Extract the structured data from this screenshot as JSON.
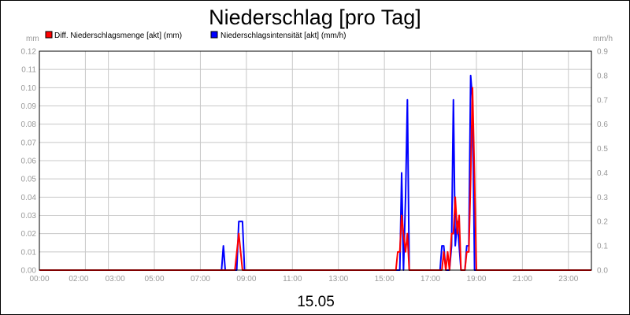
{
  "chart_data": {
    "type": "line",
    "title": "Niederschlag [pro Tag]",
    "date_label": "15.05",
    "left_axis": {
      "unit": "mm",
      "min": 0,
      "max": 0.12,
      "ticks": [
        "0.00",
        "0.01",
        "0.02",
        "0.03",
        "0.04",
        "0.05",
        "0.06",
        "0.07",
        "0.08",
        "0.09",
        "0.10",
        "0.11",
        "0.12"
      ]
    },
    "right_axis": {
      "unit": "mm/h",
      "min": 0,
      "max": 0.9,
      "ticks": [
        "0.0",
        "0.1",
        "0.2",
        "0.3",
        "0.4",
        "0.5",
        "0.6",
        "0.7",
        "0.8",
        "0.9"
      ]
    },
    "x_axis": {
      "min": 0,
      "max": 24,
      "tick_labels": [
        {
          "hour": 0,
          "label": "00:00"
        },
        {
          "hour": 2,
          "label": "02:00"
        },
        {
          "hour": 3,
          "label": "03:00"
        },
        {
          "hour": 5,
          "label": "05:00"
        },
        {
          "hour": 7,
          "label": "07:00"
        },
        {
          "hour": 9,
          "label": "09:00"
        },
        {
          "hour": 11,
          "label": "11:00"
        },
        {
          "hour": 13,
          "label": "13:00"
        },
        {
          "hour": 15,
          "label": "15:00"
        },
        {
          "hour": 17,
          "label": "17:00"
        },
        {
          "hour": 19,
          "label": "19:00"
        },
        {
          "hour": 21,
          "label": "21:00"
        },
        {
          "hour": 23,
          "label": "23:00"
        }
      ]
    },
    "grid": true,
    "legend_position": "top-left",
    "series": [
      {
        "name": "Niederschlagsintensität [akt] (mm/h)",
        "axis": "right",
        "color": "#0000ff",
        "points": [
          [
            0,
            0
          ],
          [
            7.92,
            0
          ],
          [
            8.0,
            0.1
          ],
          [
            8.08,
            0
          ],
          [
            8.58,
            0
          ],
          [
            8.67,
            0.2
          ],
          [
            8.83,
            0.2
          ],
          [
            8.92,
            0
          ],
          [
            15.5,
            0
          ],
          [
            15.58,
            0
          ],
          [
            15.67,
            0
          ],
          [
            15.75,
            0.4
          ],
          [
            15.83,
            0
          ],
          [
            15.92,
            0.3
          ],
          [
            16.0,
            0.7
          ],
          [
            16.08,
            0
          ],
          [
            16.17,
            0
          ],
          [
            17.42,
            0
          ],
          [
            17.5,
            0.1
          ],
          [
            17.58,
            0.1
          ],
          [
            17.67,
            0
          ],
          [
            17.83,
            0
          ],
          [
            17.92,
            0.1
          ],
          [
            18.0,
            0.7
          ],
          [
            18.08,
            0.1
          ],
          [
            18.17,
            0.2
          ],
          [
            18.25,
            0.1
          ],
          [
            18.33,
            0
          ],
          [
            18.5,
            0
          ],
          [
            18.58,
            0.1
          ],
          [
            18.67,
            0.1
          ],
          [
            18.75,
            0.8
          ],
          [
            18.83,
            0.7
          ],
          [
            18.92,
            0
          ],
          [
            24,
            0
          ]
        ]
      },
      {
        "name": "Diff. Niederschlagsmenge [akt] (mm)",
        "axis": "left",
        "color": "#ff0000",
        "points": [
          [
            0,
            0
          ],
          [
            8.5,
            0
          ],
          [
            8.67,
            0.02
          ],
          [
            8.83,
            0
          ],
          [
            15.5,
            0
          ],
          [
            15.58,
            0.01
          ],
          [
            15.67,
            0.01
          ],
          [
            15.75,
            0.03
          ],
          [
            15.83,
            0.02
          ],
          [
            15.92,
            0.01
          ],
          [
            16.0,
            0.02
          ],
          [
            16.08,
            0
          ],
          [
            17.5,
            0
          ],
          [
            17.58,
            0.01
          ],
          [
            17.67,
            0
          ],
          [
            17.75,
            0.01
          ],
          [
            17.83,
            0
          ],
          [
            17.92,
            0.02
          ],
          [
            18.0,
            0.02
          ],
          [
            18.08,
            0.04
          ],
          [
            18.17,
            0.02
          ],
          [
            18.25,
            0.03
          ],
          [
            18.33,
            0
          ],
          [
            18.5,
            0
          ],
          [
            18.58,
            0.01
          ],
          [
            18.67,
            0.01
          ],
          [
            18.75,
            0.05
          ],
          [
            18.83,
            0.1
          ],
          [
            18.92,
            0.05
          ],
          [
            19.0,
            0
          ],
          [
            24,
            0
          ]
        ]
      }
    ]
  }
}
